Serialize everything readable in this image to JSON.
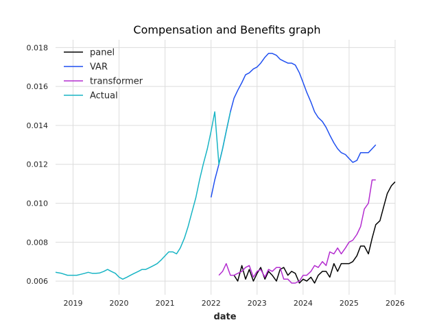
{
  "chart_data": {
    "type": "line",
    "title": "Compensation and Benefits graph",
    "xlabel": "date",
    "ylabel": "",
    "xlim": [
      2018.62,
      2026.0
    ],
    "ylim": [
      0.0053,
      0.0184
    ],
    "x_ticks": [
      2019,
      2020,
      2021,
      2022,
      2023,
      2024,
      2025,
      2026
    ],
    "x_tick_labels": [
      "2019",
      "2020",
      "2021",
      "2022",
      "2023",
      "2024",
      "2025",
      "2026"
    ],
    "y_ticks": [
      0.006,
      0.008,
      0.01,
      0.012,
      0.014,
      0.016,
      0.018
    ],
    "y_tick_labels": [
      "0.006",
      "0.008",
      "0.010",
      "0.012",
      "0.014",
      "0.016",
      "0.018"
    ],
    "grid": true,
    "legend_position": "top-left",
    "series": [
      {
        "name": "panel",
        "color": "#000000",
        "x": [
          2022.5,
          2022.58,
          2022.67,
          2022.75,
          2022.83,
          2022.92,
          2023.0,
          2023.08,
          2023.17,
          2023.25,
          2023.33,
          2023.42,
          2023.5,
          2023.58,
          2023.67,
          2023.75,
          2023.83,
          2023.92,
          2024.0,
          2024.08,
          2024.17,
          2024.25,
          2024.33,
          2024.42,
          2024.5,
          2024.58,
          2024.67,
          2024.75,
          2024.83,
          2024.92,
          2025.0,
          2025.08,
          2025.17,
          2025.25,
          2025.33,
          2025.42,
          2025.5,
          2025.58,
          2025.67,
          2025.75,
          2025.83,
          2025.92,
          2026.0
        ],
        "values": [
          0.0063,
          0.006,
          0.0068,
          0.0061,
          0.0066,
          0.006,
          0.0064,
          0.0067,
          0.0061,
          0.0065,
          0.0063,
          0.006,
          0.0066,
          0.0067,
          0.0063,
          0.0065,
          0.0064,
          0.0059,
          0.0061,
          0.006,
          0.0062,
          0.0059,
          0.0063,
          0.0065,
          0.0065,
          0.0062,
          0.0069,
          0.0065,
          0.0069,
          0.0069,
          0.0069,
          0.007,
          0.0073,
          0.0078,
          0.0078,
          0.0074,
          0.0082,
          0.0089,
          0.0091,
          0.0098,
          0.0105,
          0.0109,
          0.0111
        ]
      },
      {
        "name": "VAR",
        "color": "#1f4ff0",
        "x": [
          2022.0,
          2022.08,
          2022.17,
          2022.25,
          2022.33,
          2022.42,
          2022.5,
          2022.58,
          2022.67,
          2022.75,
          2022.83,
          2022.92,
          2023.0,
          2023.08,
          2023.17,
          2023.25,
          2023.33,
          2023.42,
          2023.5,
          2023.58,
          2023.67,
          2023.75,
          2023.83,
          2023.92,
          2024.0,
          2024.08,
          2024.17,
          2024.25,
          2024.33,
          2024.42,
          2024.5,
          2024.58,
          2024.67,
          2024.75,
          2024.83,
          2024.92,
          2025.0,
          2025.08,
          2025.17,
          2025.25,
          2025.33,
          2025.42,
          2025.5,
          2025.58
        ],
        "values": [
          0.0103,
          0.0112,
          0.012,
          0.0128,
          0.0137,
          0.0147,
          0.0154,
          0.0158,
          0.0162,
          0.0166,
          0.0167,
          0.0169,
          0.017,
          0.0172,
          0.0175,
          0.0177,
          0.0177,
          0.0176,
          0.0174,
          0.0173,
          0.0172,
          0.0172,
          0.0171,
          0.0167,
          0.0162,
          0.0157,
          0.0152,
          0.0147,
          0.0144,
          0.0142,
          0.0139,
          0.0135,
          0.0131,
          0.0128,
          0.0126,
          0.0125,
          0.0123,
          0.0121,
          0.0122,
          0.0126,
          0.0126,
          0.0126,
          0.0128,
          0.013
        ]
      },
      {
        "name": "transformer",
        "color": "#b32bcf",
        "x": [
          2022.17,
          2022.25,
          2022.33,
          2022.42,
          2022.5,
          2022.58,
          2022.67,
          2022.75,
          2022.83,
          2022.92,
          2023.0,
          2023.08,
          2023.17,
          2023.25,
          2023.33,
          2023.42,
          2023.5,
          2023.58,
          2023.67,
          2023.75,
          2023.83,
          2023.92,
          2024.0,
          2024.08,
          2024.17,
          2024.25,
          2024.33,
          2024.42,
          2024.5,
          2024.58,
          2024.67,
          2024.75,
          2024.83,
          2024.92,
          2025.0,
          2025.08,
          2025.17,
          2025.25,
          2025.33,
          2025.42,
          2025.5,
          2025.58
        ],
        "values": [
          0.0063,
          0.0065,
          0.0069,
          0.0063,
          0.0063,
          0.0064,
          0.0065,
          0.0067,
          0.0068,
          0.0062,
          0.0065,
          0.0066,
          0.0062,
          0.0066,
          0.0065,
          0.0067,
          0.0067,
          0.0061,
          0.0061,
          0.0059,
          0.0059,
          0.006,
          0.0063,
          0.0063,
          0.0065,
          0.0068,
          0.0067,
          0.007,
          0.0068,
          0.0075,
          0.0074,
          0.0077,
          0.0074,
          0.0077,
          0.008,
          0.0081,
          0.0084,
          0.0088,
          0.0097,
          0.01,
          0.0112,
          0.0112
        ]
      },
      {
        "name": "Actual",
        "color": "#17b4c4",
        "x": [
          2018.62,
          2018.75,
          2018.88,
          2019.0,
          2019.08,
          2019.17,
          2019.25,
          2019.33,
          2019.42,
          2019.5,
          2019.58,
          2019.67,
          2019.75,
          2019.83,
          2019.92,
          2020.0,
          2020.08,
          2020.17,
          2020.25,
          2020.33,
          2020.42,
          2020.5,
          2020.58,
          2020.67,
          2020.75,
          2020.83,
          2020.92,
          2021.0,
          2021.08,
          2021.17,
          2021.25,
          2021.33,
          2021.42,
          2021.5,
          2021.58,
          2021.67,
          2021.75,
          2021.83,
          2021.92,
          2022.0,
          2022.08,
          2022.17,
          2022.25,
          2022.33,
          2022.42
        ],
        "values": [
          0.00645,
          0.0064,
          0.0063,
          0.0063,
          0.0063,
          0.00635,
          0.0064,
          0.00645,
          0.0064,
          0.0064,
          0.00642,
          0.0065,
          0.0066,
          0.0065,
          0.0064,
          0.0062,
          0.0061,
          0.0062,
          0.0063,
          0.0064,
          0.0065,
          0.0066,
          0.0066,
          0.0067,
          0.0068,
          0.0069,
          0.0071,
          0.0073,
          0.0075,
          0.0075,
          0.0074,
          0.0077,
          0.0082,
          0.0088,
          0.0095,
          0.0103,
          0.0112,
          0.012,
          0.0128,
          0.0137,
          0.0147,
          0.012,
          0.0128,
          0.0137,
          0.0147
        ]
      }
    ]
  }
}
